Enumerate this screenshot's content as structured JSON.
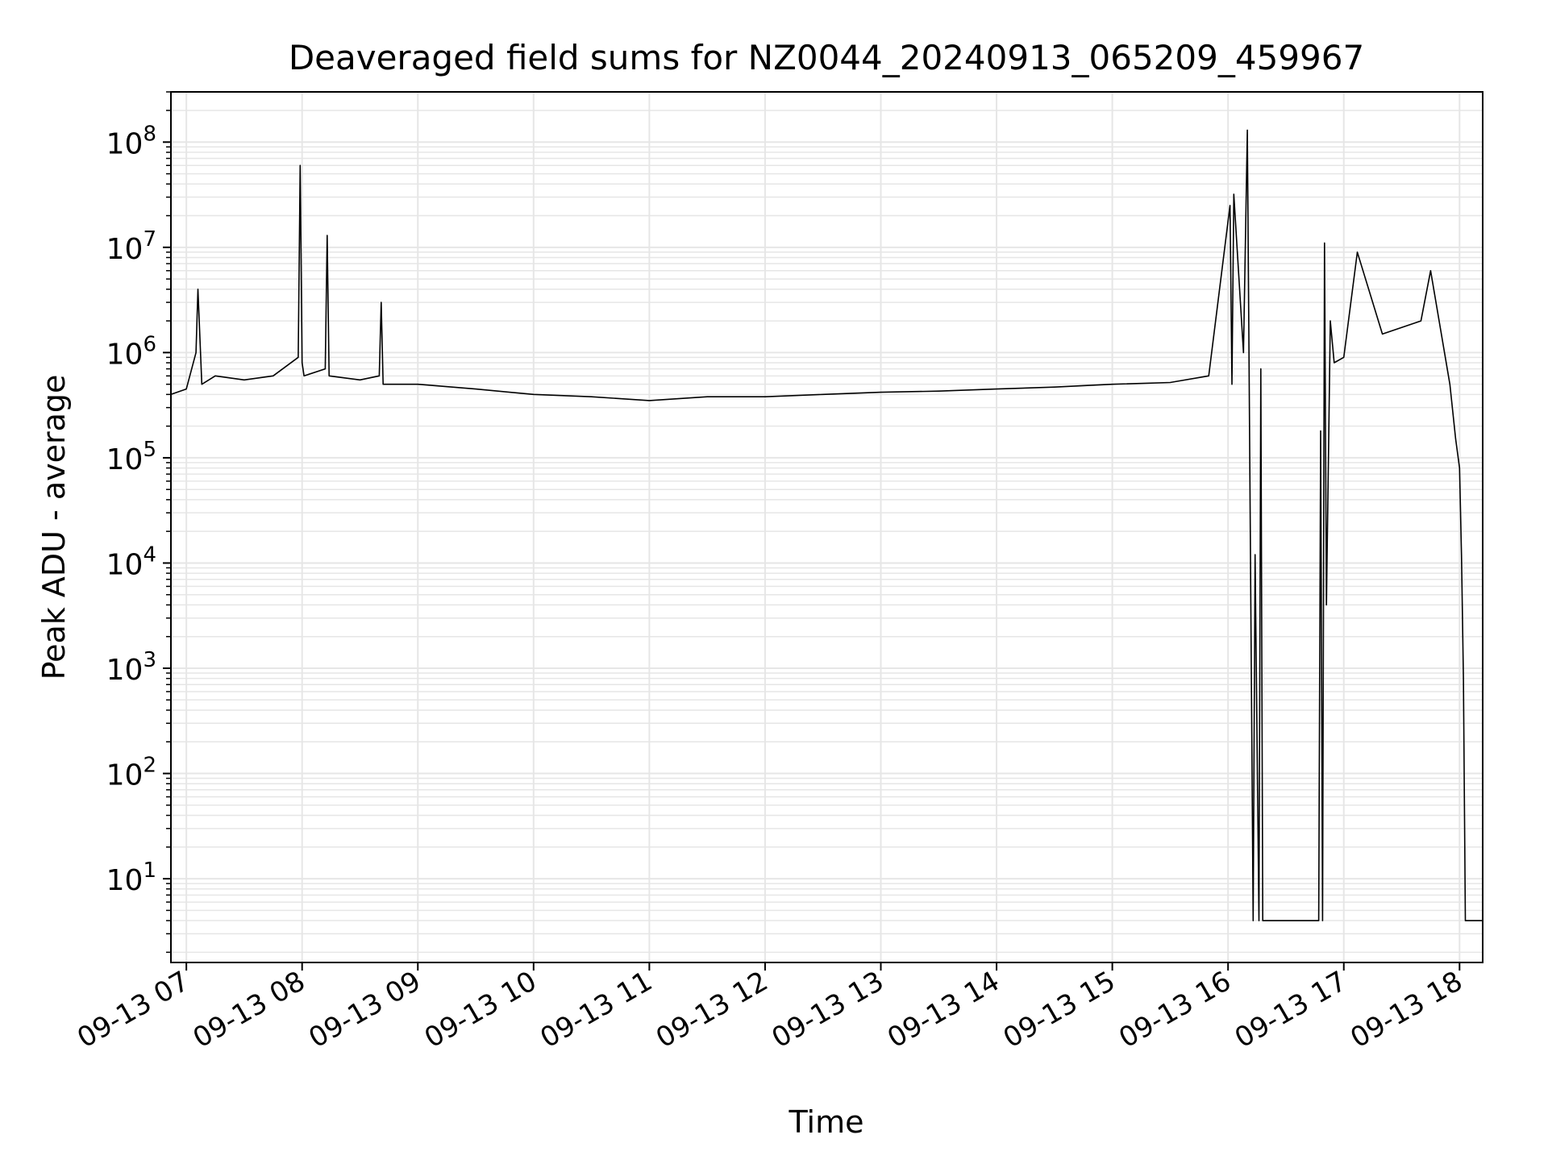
{
  "chart_data": {
    "type": "line",
    "title": "Deaveraged field sums for NZ0044_20240913_065209_459967",
    "xlabel": "Time",
    "ylabel": "Peak ADU - average",
    "yscale": "log",
    "ylim": [
      1.6,
      300000000
    ],
    "xlim": [
      "2024-09-13 06:52",
      "2024-09-13 18:12"
    ],
    "grid": true,
    "line_color": "#000000",
    "grid_color": "#e6e6e6",
    "x_ticks": [
      "09-13 07",
      "09-13 08",
      "09-13 09",
      "09-13 10",
      "09-13 11",
      "09-13 12",
      "09-13 13",
      "09-13 14",
      "09-13 15",
      "09-13 16",
      "09-13 17",
      "09-13 18"
    ],
    "x_tick_times": [
      "2024-09-13 07:00",
      "2024-09-13 08:00",
      "2024-09-13 09:00",
      "2024-09-13 10:00",
      "2024-09-13 11:00",
      "2024-09-13 12:00",
      "2024-09-13 13:00",
      "2024-09-13 14:00",
      "2024-09-13 15:00",
      "2024-09-13 16:00",
      "2024-09-13 17:00",
      "2024-09-13 18:00"
    ],
    "y_ticks": [
      {
        "base": "10",
        "exp": "1",
        "value": 10
      },
      {
        "base": "10",
        "exp": "2",
        "value": 100
      },
      {
        "base": "10",
        "exp": "3",
        "value": 1000
      },
      {
        "base": "10",
        "exp": "4",
        "value": 10000
      },
      {
        "base": "10",
        "exp": "5",
        "value": 100000
      },
      {
        "base": "10",
        "exp": "6",
        "value": 1000000
      },
      {
        "base": "10",
        "exp": "7",
        "value": 10000000
      },
      {
        "base": "10",
        "exp": "8",
        "value": 100000000
      }
    ],
    "series": [
      {
        "x": [
          "2024-09-13 06:52",
          "2024-09-13 07:00",
          "2024-09-13 07:05",
          "2024-09-13 07:06",
          "2024-09-13 07:08",
          "2024-09-13 07:15",
          "2024-09-13 07:30",
          "2024-09-13 07:45",
          "2024-09-13 07:58",
          "2024-09-13 07:59",
          "2024-09-13 08:00",
          "2024-09-13 08:01",
          "2024-09-13 08:12",
          "2024-09-13 08:13",
          "2024-09-13 08:14",
          "2024-09-13 08:30",
          "2024-09-13 08:40",
          "2024-09-13 08:41",
          "2024-09-13 08:42",
          "2024-09-13 09:00",
          "2024-09-13 09:30",
          "2024-09-13 10:00",
          "2024-09-13 10:30",
          "2024-09-13 11:00",
          "2024-09-13 11:30",
          "2024-09-13 12:00",
          "2024-09-13 12:30",
          "2024-09-13 13:00",
          "2024-09-13 13:30",
          "2024-09-13 14:00",
          "2024-09-13 14:30",
          "2024-09-13 15:00",
          "2024-09-13 15:30",
          "2024-09-13 15:50",
          "2024-09-13 16:01",
          "2024-09-13 16:02",
          "2024-09-13 16:03",
          "2024-09-13 16:08",
          "2024-09-13 16:10",
          "2024-09-13 16:13",
          "2024-09-13 16:14",
          "2024-09-13 16:16",
          "2024-09-13 16:17",
          "2024-09-13 16:18",
          "2024-09-13 16:30",
          "2024-09-13 16:47",
          "2024-09-13 16:48",
          "2024-09-13 16:49",
          "2024-09-13 16:50",
          "2024-09-13 16:51",
          "2024-09-13 16:53",
          "2024-09-13 16:55",
          "2024-09-13 17:00",
          "2024-09-13 17:07",
          "2024-09-13 17:20",
          "2024-09-13 17:40",
          "2024-09-13 17:45",
          "2024-09-13 17:55",
          "2024-09-13 17:58",
          "2024-09-13 18:00",
          "2024-09-13 18:01",
          "2024-09-13 18:02",
          "2024-09-13 18:03",
          "2024-09-13 18:05",
          "2024-09-13 18:12"
        ],
        "values": [
          400000,
          450000,
          1000000,
          4000000,
          500000,
          600000,
          550000,
          600000,
          900000,
          60000000,
          800000,
          600000,
          700000,
          13000000,
          600000,
          550000,
          600000,
          3000000,
          500000,
          500000,
          450000,
          400000,
          380000,
          350000,
          380000,
          380000,
          400000,
          420000,
          430000,
          450000,
          470000,
          500000,
          520000,
          600000,
          25000000,
          500000,
          32000000,
          1000000,
          130000000,
          4,
          12000,
          4,
          700000,
          4,
          4,
          4,
          180000,
          4,
          11000000,
          4000,
          2000000,
          800000,
          900000,
          9000000,
          1500000,
          2000000,
          6000000,
          500000,
          150000,
          80000,
          12000,
          800,
          4,
          4,
          4
        ]
      }
    ]
  }
}
